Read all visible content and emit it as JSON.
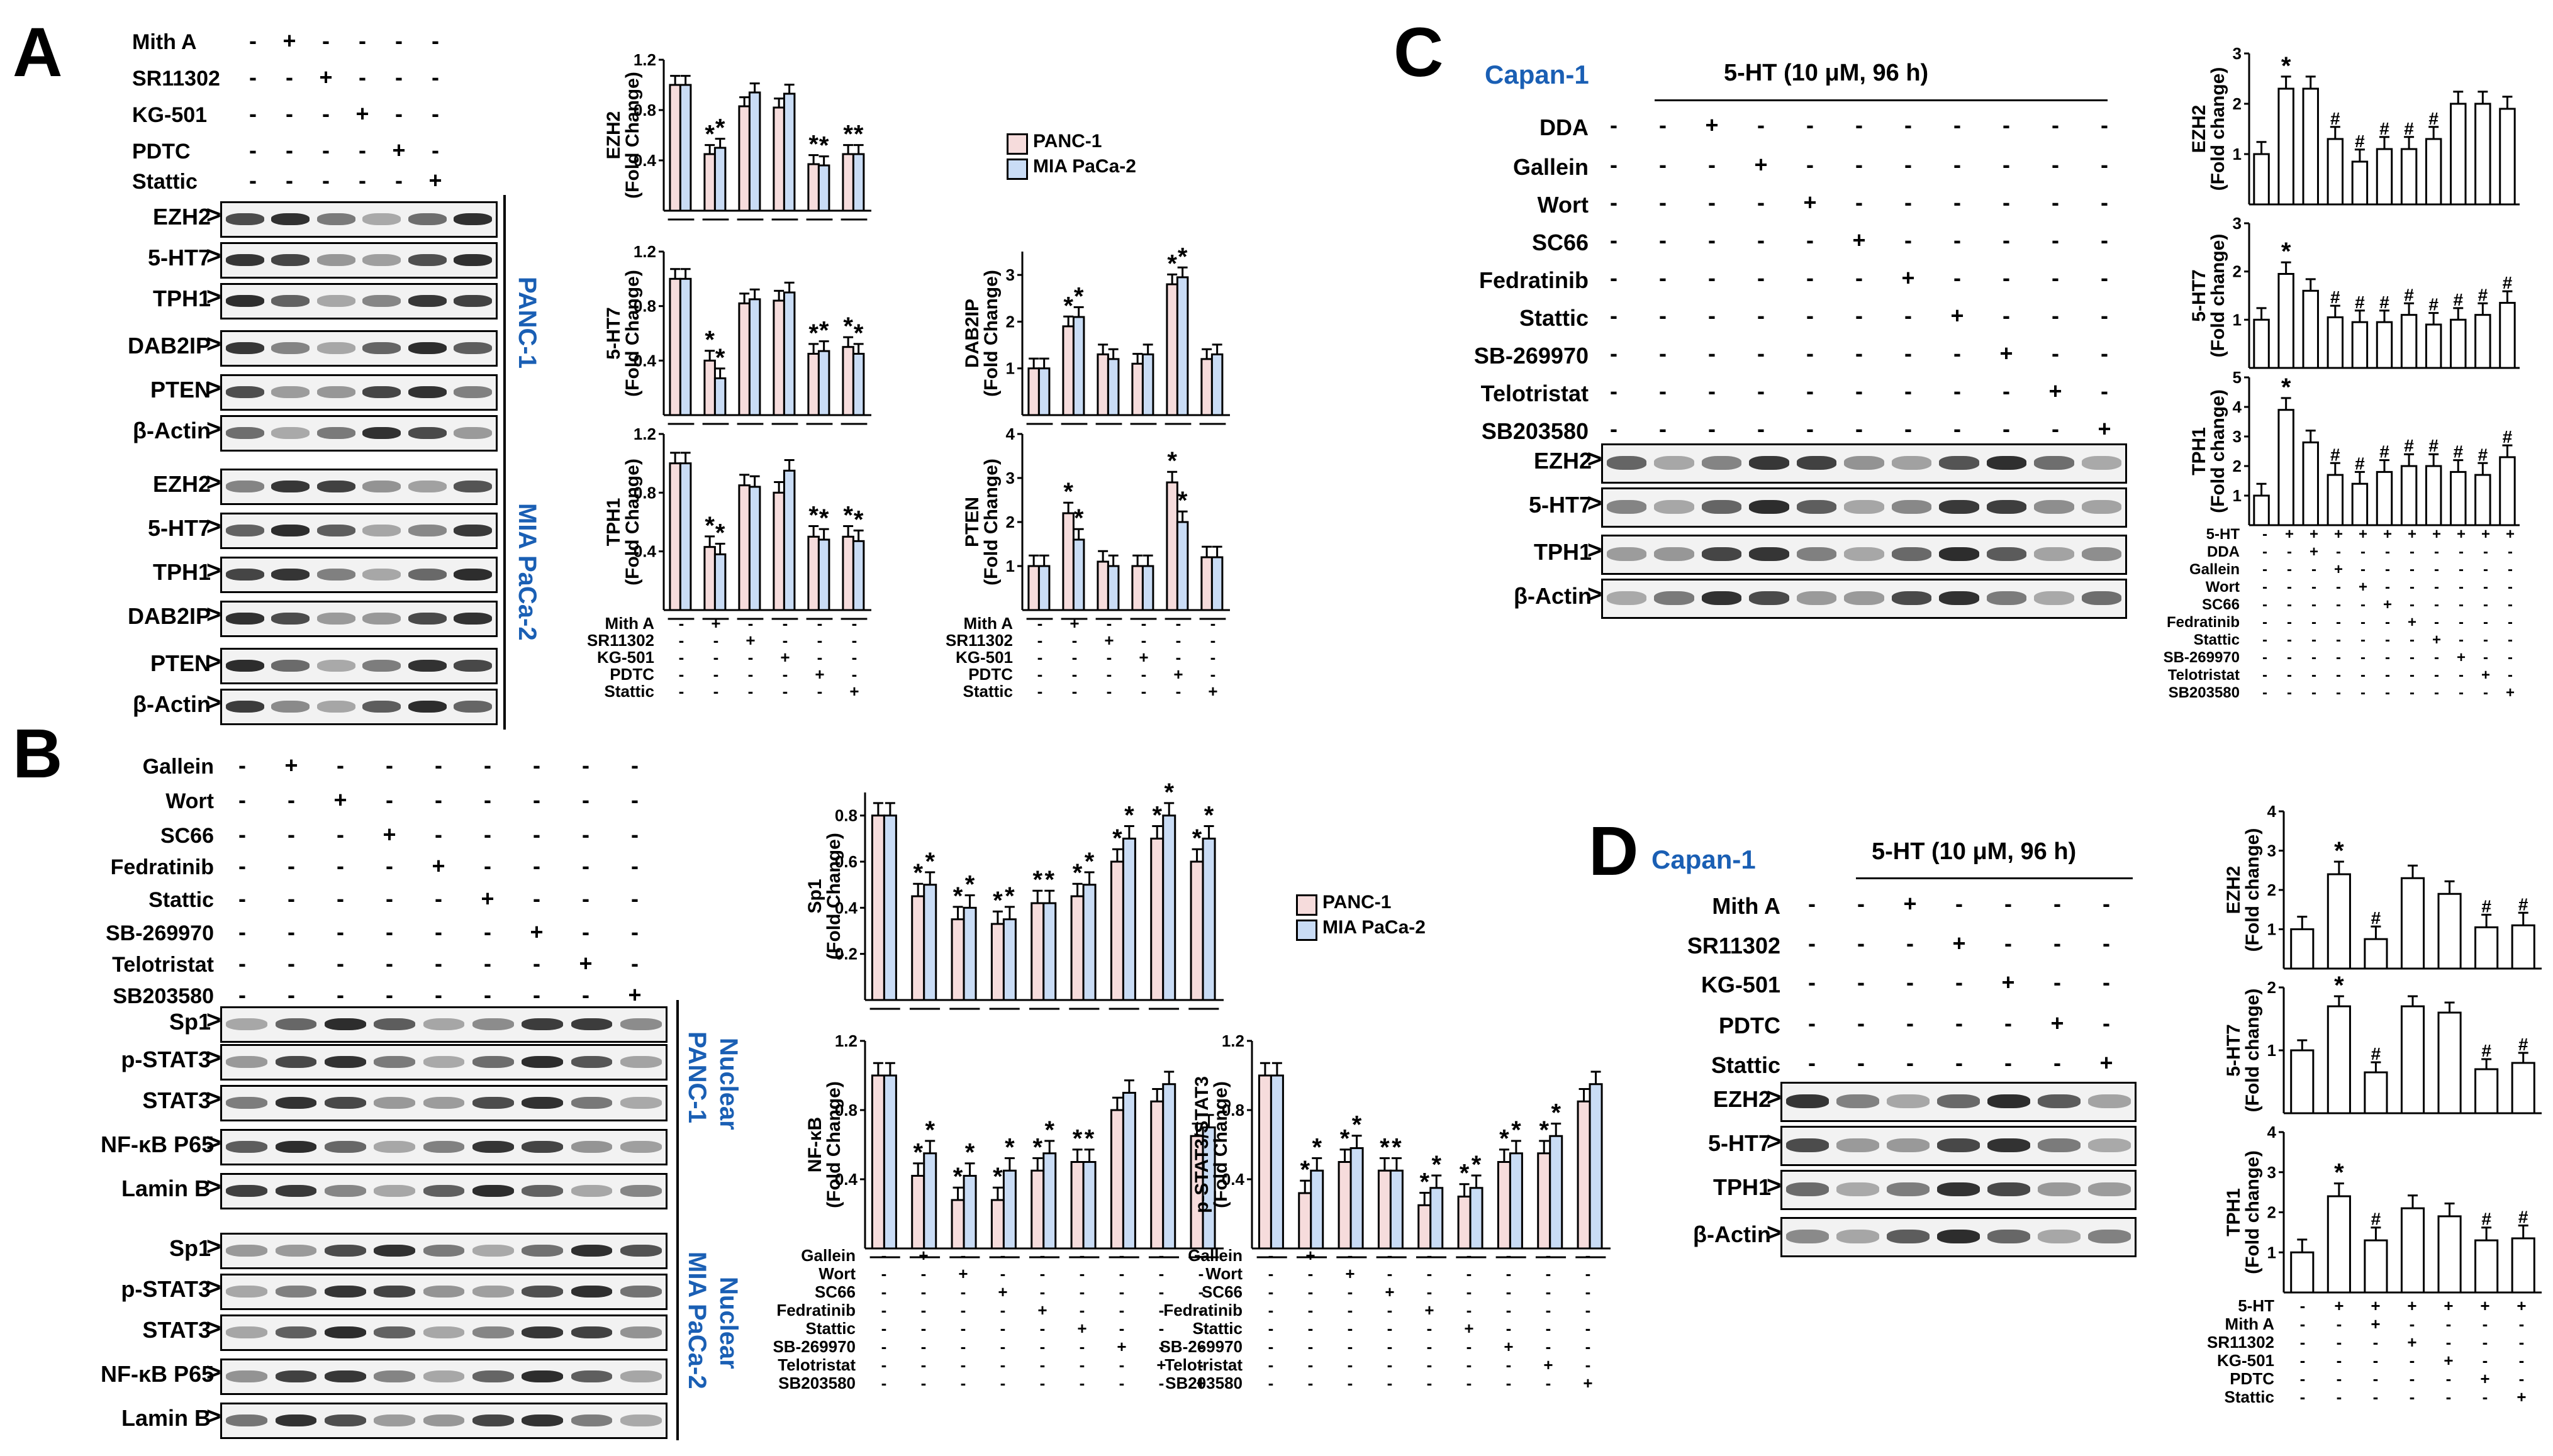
{
  "panels": {
    "A": "A",
    "B": "B",
    "C": "C",
    "D": "D"
  },
  "colors": {
    "panc": "#f6dcdc",
    "mia": "#c9dcf5",
    "blue": "#1a5fb4"
  },
  "legend": {
    "panc": "PANC-1",
    "mia": "MIA PaCa-2"
  },
  "panelA": {
    "treat_labels": [
      "Mith A",
      "SR11302",
      "KG-501",
      "PDTC",
      "Stattic"
    ],
    "treat_signs": [
      [
        "+",
        "-",
        "-",
        "-",
        "-"
      ],
      [
        "-",
        "+",
        "-",
        "-",
        "-"
      ],
      [
        "-",
        "-",
        "+",
        "-",
        "-"
      ],
      [
        "-",
        "-",
        "-",
        "+",
        "-"
      ],
      [
        "-",
        "-",
        "-",
        "-",
        "+"
      ]
    ],
    "blot_labels_panc": [
      "EZH2",
      "5-HT7",
      "TPH1",
      "DAB2IP",
      "PTEN",
      "β-Actin"
    ],
    "blot_labels_mia": [
      "EZH2",
      "5-HT7",
      "TPH1",
      "DAB2IP",
      "PTEN",
      "β-Actin"
    ],
    "cell_panc": "PANC-1",
    "cell_mia": "MIA PaCa-2"
  },
  "panelB": {
    "treat_labels": [
      "Gallein",
      "Wort",
      "SC66",
      "Fedratinib",
      "Stattic",
      "SB-269970",
      "Telotristat",
      "SB203580"
    ],
    "blot_labels_panc": [
      "Sp1",
      "p-STAT3",
      "STAT3",
      "NF-κB P65",
      "Lamin B"
    ],
    "blot_labels_mia": [
      "Sp1",
      "p-STAT3",
      "STAT3",
      "NF-κB P65",
      "Lamin B"
    ],
    "cell_panc": "PANC-1",
    "cell_panc2": "Nuclear",
    "cell_mia": "MIA PaCa-2",
    "cell_mia2": "Nuclear"
  },
  "panelC": {
    "cell": "Capan-1",
    "condition": "5-HT (10 μM, 96 h)",
    "treat_labels": [
      "DDA",
      "Gallein",
      "Wort",
      "SC66",
      "Fedratinib",
      "Stattic",
      "SB-269970",
      "Telotristat",
      "SB203580"
    ],
    "blot_labels": [
      "EZH2",
      "5-HT7",
      "TPH1",
      "β-Actin"
    ],
    "chart_rows": [
      "5-HT",
      "DDA",
      "Gallein",
      "Wort",
      "SC66",
      "Fedratinib",
      "Stattic",
      "SB-269970",
      "Telotristat",
      "SB203580"
    ]
  },
  "panelD": {
    "cell": "Capan-1",
    "condition": "5-HT (10 μM, 96 h)",
    "treat_labels": [
      "Mith A",
      "SR11302",
      "KG-501",
      "PDTC",
      "Stattic"
    ],
    "blot_labels": [
      "EZH2",
      "5-HT7",
      "TPH1",
      "β-Actin"
    ],
    "chart_rows": [
      "5-HT",
      "Mith A",
      "SR11302",
      "KG-501",
      "PDTC",
      "Stattic"
    ]
  },
  "chart_data": [
    {
      "id": "A-EZH2",
      "type": "bar",
      "ylabel": "EZH2",
      "ylabel2": "(Fold Change)",
      "yticks": [
        "0.4",
        "0.8",
        "1.2"
      ],
      "ylim": [
        0,
        1.2
      ],
      "series": [
        {
          "name": "PANC-1",
          "values": [
            1.0,
            0.45,
            0.83,
            0.82,
            0.37,
            0.45
          ]
        },
        {
          "name": "MIA PaCa-2",
          "values": [
            1.0,
            0.5,
            0.94,
            0.93,
            0.36,
            0.45
          ]
        }
      ],
      "stars": [
        0,
        1,
        0,
        0,
        1,
        1
      ]
    },
    {
      "id": "A-5HT7",
      "type": "bar",
      "ylabel": "5-HT7",
      "ylabel2": "(Fold Change)",
      "yticks": [
        "0.4",
        "0.8",
        "1.2"
      ],
      "ylim": [
        0,
        1.2
      ],
      "series": [
        {
          "name": "PANC-1",
          "values": [
            1.0,
            0.4,
            0.82,
            0.84,
            0.45,
            0.5
          ]
        },
        {
          "name": "MIA PaCa-2",
          "values": [
            1.0,
            0.27,
            0.85,
            0.9,
            0.47,
            0.45
          ]
        }
      ],
      "stars": [
        0,
        1,
        0,
        0,
        1,
        1
      ]
    },
    {
      "id": "A-TPH1",
      "type": "bar",
      "ylabel": "TPH1",
      "ylabel2": "(Fold Change)",
      "yticks": [
        "0.4",
        "0.8",
        "1.2"
      ],
      "ylim": [
        0,
        1.2
      ],
      "series": [
        {
          "name": "PANC-1",
          "values": [
            1.0,
            0.43,
            0.85,
            0.8,
            0.5,
            0.5
          ]
        },
        {
          "name": "MIA PaCa-2",
          "values": [
            1.0,
            0.38,
            0.84,
            0.95,
            0.48,
            0.47
          ]
        }
      ],
      "stars": [
        0,
        1,
        0,
        0,
        1,
        1
      ]
    },
    {
      "id": "A-DAB2IP",
      "type": "bar",
      "ylabel": "DAB2IP",
      "ylabel2": "(Fold Change)",
      "yticks": [
        "1",
        "2",
        "3"
      ],
      "ylim": [
        0,
        3.5
      ],
      "series": [
        {
          "name": "PANC-1",
          "values": [
            1.0,
            1.9,
            1.3,
            1.1,
            2.8,
            1.2
          ]
        },
        {
          "name": "MIA PaCa-2",
          "values": [
            1.0,
            2.1,
            1.2,
            1.3,
            2.95,
            1.3
          ]
        }
      ],
      "stars": [
        0,
        1,
        0,
        0,
        1,
        0
      ]
    },
    {
      "id": "A-PTEN",
      "type": "bar",
      "ylabel": "PTEN",
      "ylabel2": "(Fold Change)",
      "yticks": [
        "1",
        "2",
        "3",
        "4"
      ],
      "ylim": [
        0,
        4
      ],
      "series": [
        {
          "name": "PANC-1",
          "values": [
            1.0,
            2.2,
            1.1,
            1.0,
            2.9,
            1.2
          ]
        },
        {
          "name": "MIA PaCa-2",
          "values": [
            1.0,
            1.6,
            1.0,
            1.0,
            2.0,
            1.2
          ]
        }
      ],
      "stars": [
        0,
        1,
        0,
        0,
        1,
        0
      ]
    },
    {
      "id": "B-Sp1",
      "type": "bar",
      "ylabel": "Sp1",
      "ylabel2": "(Fold Change)",
      "yticks": [
        "0.2",
        "0.4",
        "0.6",
        "0.8"
      ],
      "ylim": [
        0,
        0.9
      ],
      "series": [
        {
          "name": "PANC-1",
          "values": [
            0.8,
            0.45,
            0.35,
            0.33,
            0.42,
            0.45,
            0.6,
            0.7,
            0.6
          ]
        },
        {
          "name": "MIA PaCa-2",
          "values": [
            0.8,
            0.5,
            0.4,
            0.35,
            0.42,
            0.5,
            0.7,
            0.8,
            0.7
          ]
        }
      ],
      "stars": [
        0,
        1,
        1,
        1,
        1,
        1,
        1,
        1,
        1
      ]
    },
    {
      "id": "B-NFkB",
      "type": "bar",
      "ylabel": "NF-κB",
      "ylabel2": "(Fold Change)",
      "yticks": [
        "0.4",
        "0.8",
        "1.2"
      ],
      "ylim": [
        0,
        1.2
      ],
      "series": [
        {
          "name": "PANC-1",
          "values": [
            1.0,
            0.42,
            0.28,
            0.28,
            0.45,
            0.5,
            0.8,
            0.85,
            0.65
          ]
        },
        {
          "name": "MIA PaCa-2",
          "values": [
            1.0,
            0.55,
            0.42,
            0.45,
            0.55,
            0.5,
            0.9,
            0.95,
            0.7
          ]
        }
      ],
      "stars": [
        0,
        1,
        1,
        1,
        1,
        1,
        0,
        0,
        0
      ]
    },
    {
      "id": "B-pSTAT3",
      "type": "bar",
      "ylabel": "p-STAT3/STAT3",
      "ylabel2": "(Fold Change)",
      "yticks": [
        "0.4",
        "0.8",
        "1.2"
      ],
      "ylim": [
        0,
        1.2
      ],
      "series": [
        {
          "name": "PANC-1",
          "values": [
            1.0,
            0.32,
            0.5,
            0.45,
            0.25,
            0.3,
            0.5,
            0.55,
            0.85
          ]
        },
        {
          "name": "MIA PaCa-2",
          "values": [
            1.0,
            0.45,
            0.58,
            0.45,
            0.35,
            0.35,
            0.55,
            0.65,
            0.95
          ]
        }
      ],
      "stars": [
        0,
        1,
        1,
        1,
        1,
        1,
        1,
        1,
        0
      ]
    },
    {
      "id": "C-EZH2",
      "type": "bar",
      "ylabel": "EZH2",
      "ylabel2": "(Fold change)",
      "yticks": [
        "1",
        "2",
        "3"
      ],
      "ylim": [
        0,
        3
      ],
      "values": [
        1.0,
        2.3,
        2.3,
        1.3,
        0.85,
        1.1,
        1.1,
        1.3,
        2.0,
        2.0,
        1.9
      ],
      "marks": [
        "",
        "*",
        "",
        "#",
        "#",
        "#",
        "#",
        "#",
        "",
        "",
        ""
      ]
    },
    {
      "id": "C-5HT7",
      "type": "bar",
      "ylabel": "5-HT7",
      "ylabel2": "(Fold change)",
      "yticks": [
        "1",
        "2",
        "3"
      ],
      "ylim": [
        0,
        3
      ],
      "values": [
        1.0,
        1.95,
        1.6,
        1.05,
        0.95,
        0.95,
        1.1,
        0.9,
        1.0,
        1.1,
        1.35
      ],
      "marks": [
        "",
        "*",
        "",
        "#",
        "#",
        "#",
        "#",
        "#",
        "#",
        "#",
        "#"
      ]
    },
    {
      "id": "C-TPH1",
      "type": "bar",
      "ylabel": "TPH1",
      "ylabel2": "(Fold change)",
      "yticks": [
        "1",
        "2",
        "3",
        "4",
        "5"
      ],
      "ylim": [
        0,
        5
      ],
      "values": [
        1.0,
        3.9,
        2.8,
        1.7,
        1.4,
        1.8,
        2.0,
        2.0,
        1.8,
        1.7,
        2.3
      ],
      "marks": [
        "",
        "*",
        "",
        "#",
        "#",
        "#",
        "#",
        "#",
        "#",
        "#",
        "#"
      ]
    },
    {
      "id": "D-EZH2",
      "type": "bar",
      "ylabel": "EZH2",
      "ylabel2": "(Fold change)",
      "yticks": [
        "1",
        "2",
        "3",
        "4"
      ],
      "ylim": [
        0,
        4
      ],
      "values": [
        1.0,
        2.4,
        0.75,
        2.3,
        1.9,
        1.05,
        1.1
      ],
      "marks": [
        "",
        "*",
        "#",
        "",
        "",
        "#",
        "#"
      ]
    },
    {
      "id": "D-5HT7",
      "type": "bar",
      "ylabel": "5-HT7",
      "ylabel2": "(Fold change)",
      "yticks": [
        "1",
        "2"
      ],
      "ylim": [
        0,
        2
      ],
      "values": [
        1.0,
        1.7,
        0.65,
        1.7,
        1.6,
        0.7,
        0.8
      ],
      "marks": [
        "",
        "*",
        "#",
        "",
        "",
        "#",
        "#"
      ]
    },
    {
      "id": "D-TPH1",
      "type": "bar",
      "ylabel": "TPH1",
      "ylabel2": "(Fold change)",
      "yticks": [
        "1",
        "2",
        "3",
        "4"
      ],
      "ylim": [
        0,
        4
      ],
      "values": [
        1.0,
        2.4,
        1.3,
        2.1,
        1.9,
        1.3,
        1.35
      ],
      "marks": [
        "",
        "*",
        "#",
        "",
        "",
        "#",
        "#"
      ]
    }
  ]
}
